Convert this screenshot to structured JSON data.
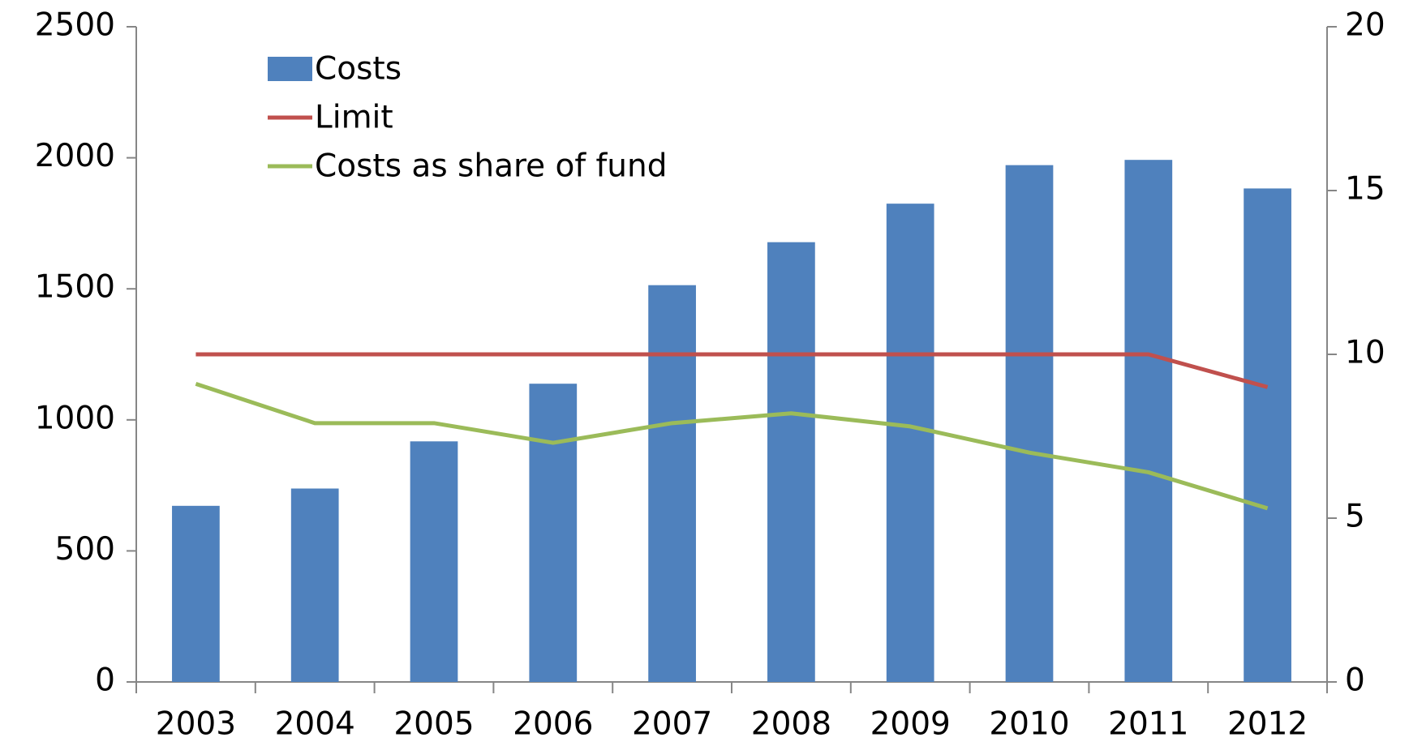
{
  "chart_data": {
    "type": "bar_line",
    "categories": [
      "2003",
      "2004",
      "2005",
      "2006",
      "2007",
      "2008",
      "2009",
      "2010",
      "2011",
      "2012"
    ],
    "series": [
      {
        "name": "Costs",
        "type": "bar",
        "color": "#4f81bd",
        "values": [
          672,
          738,
          918,
          1138,
          1514,
          1678,
          1825,
          1972,
          1992,
          1883
        ]
      },
      {
        "name": "Limit",
        "type": "line",
        "axis": "y2",
        "color": "#c0504d",
        "values": [
          10,
          10,
          10,
          10,
          10,
          10,
          10,
          10,
          10,
          9
        ]
      },
      {
        "name": "Costs as share of fund",
        "type": "line",
        "axis": "y2",
        "color": "#9bbb59",
        "values": [
          9.1,
          7.9,
          7.9,
          7.3,
          7.9,
          8.2,
          7.8,
          7.0,
          6.4,
          5.3
        ]
      }
    ],
    "ylim": [
      0,
      2500
    ],
    "yticks": [
      0,
      500,
      1000,
      1500,
      2000,
      2500
    ],
    "y2lim": [
      0,
      20
    ],
    "y2ticks": [
      0,
      5,
      10,
      15,
      20
    ],
    "grid": false,
    "legend": "upper left"
  }
}
